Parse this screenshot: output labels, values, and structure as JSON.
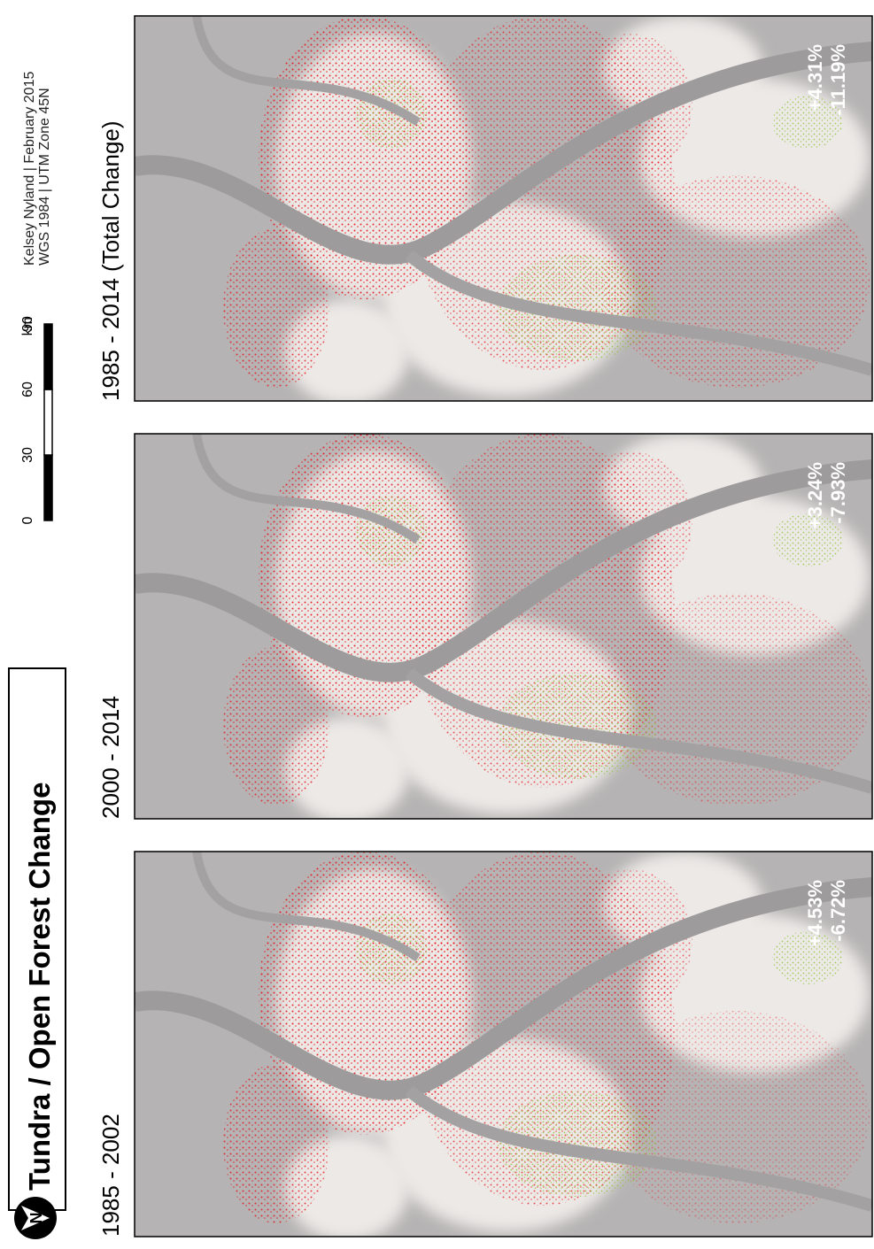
{
  "title": "Tundra / Open Forest Change",
  "north": "N",
  "scale_bar": {
    "ticks": [
      0,
      30,
      60,
      90
    ],
    "unit": "km"
  },
  "credits": [
    "Kelsey Nyland | February 2015",
    "WGS 1984 | UTM Zone 45N"
  ],
  "panels": [
    {
      "label": "1985 - 2014 (Total Change)",
      "gain": "+4.31%",
      "loss": "-11.19%"
    },
    {
      "label": "2000 - 2014",
      "gain": "+3.24%",
      "loss": "-7.93%"
    },
    {
      "label": "1985 - 2002",
      "gain": "+4.53%",
      "loss": "-6.72%"
    }
  ]
}
